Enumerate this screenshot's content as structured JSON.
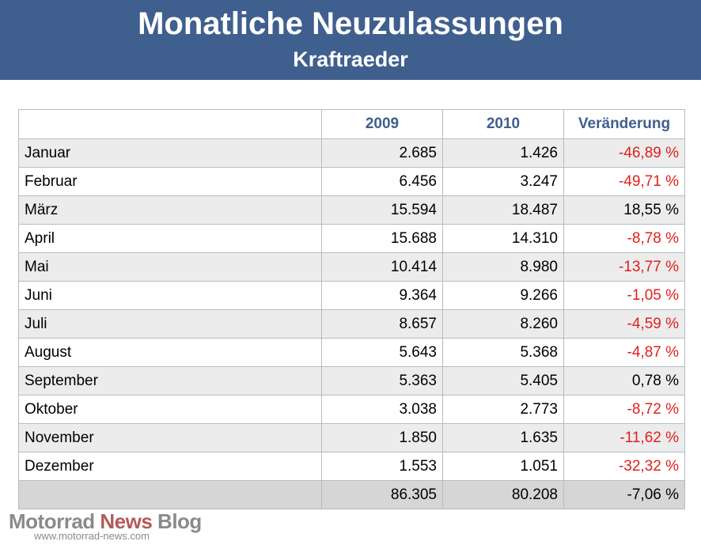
{
  "header": {
    "title": "Monatliche Neuzulassungen",
    "subtitle": "Kraftraeder"
  },
  "chart_data": {
    "type": "table",
    "title": "Monatliche Neuzulassungen",
    "subtitle": "Kraftraeder",
    "columns": [
      "",
      "2009",
      "2010",
      "Veränderung"
    ],
    "rows": [
      {
        "month": "Januar",
        "y2009": "2.685",
        "y2010": "1.426",
        "change": "-46,89 %",
        "negative": true
      },
      {
        "month": "Februar",
        "y2009": "6.456",
        "y2010": "3.247",
        "change": "-49,71 %",
        "negative": true
      },
      {
        "month": "März",
        "y2009": "15.594",
        "y2010": "18.487",
        "change": "18,55 %",
        "negative": false
      },
      {
        "month": "April",
        "y2009": "15.688",
        "y2010": "14.310",
        "change": "-8,78 %",
        "negative": true
      },
      {
        "month": "Mai",
        "y2009": "10.414",
        "y2010": "8.980",
        "change": "-13,77 %",
        "negative": true
      },
      {
        "month": "Juni",
        "y2009": "9.364",
        "y2010": "9.266",
        "change": "-1,05 %",
        "negative": true
      },
      {
        "month": "Juli",
        "y2009": "8.657",
        "y2010": "8.260",
        "change": "-4,59 %",
        "negative": true
      },
      {
        "month": "August",
        "y2009": "5.643",
        "y2010": "5.368",
        "change": "-4,87 %",
        "negative": true
      },
      {
        "month": "September",
        "y2009": "5.363",
        "y2010": "5.405",
        "change": "0,78 %",
        "negative": false
      },
      {
        "month": "Oktober",
        "y2009": "3.038",
        "y2010": "2.773",
        "change": "-8,72 %",
        "negative": true
      },
      {
        "month": "November",
        "y2009": "1.850",
        "y2010": "1.635",
        "change": "-11,62 %",
        "negative": true
      },
      {
        "month": "Dezember",
        "y2009": "1.553",
        "y2010": "1.051",
        "change": "-32,32 %",
        "negative": true
      }
    ],
    "total": {
      "label": "",
      "y2009": "86.305",
      "y2010": "80.208",
      "change": "-7,06 %"
    }
  },
  "watermark": {
    "part1": "Motorrad ",
    "part2": "News",
    "part3": " Blog",
    "url": "www.motorrad-news.com"
  },
  "colors": {
    "header_bg": "#3f5f8f",
    "negative": "#e0201c",
    "row_shade": "#ececec",
    "total_bg": "#d6d6d6",
    "grid": "#b4bcc6"
  }
}
